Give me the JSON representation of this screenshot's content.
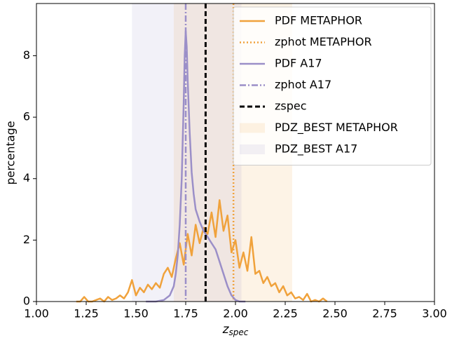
{
  "chart_data": {
    "type": "line",
    "xlabel": {
      "main": "z",
      "sub": "spec"
    },
    "ylabel": "percentage",
    "xlim": [
      1.0,
      3.0
    ],
    "ylim": [
      0,
      9.7
    ],
    "xticks": [
      {
        "value": 1.0,
        "label": "1.00"
      },
      1.25,
      {
        "value": 1.5,
        "label": "1.50"
      },
      1.75,
      {
        "value": 2.0,
        "label": "2.00"
      },
      2.25,
      {
        "value": 2.5,
        "label": "2.50"
      },
      2.75,
      {
        "value": 3.0,
        "label": "3.00"
      }
    ],
    "yticks": [
      0,
      2,
      4,
      6,
      8
    ],
    "legend": "upper right",
    "series": [
      {
        "name": "PDF METAPHOR",
        "kind": "line",
        "style": "solid",
        "color": "#f0a23c",
        "x": [
          1.2,
          1.22,
          1.24,
          1.26,
          1.28,
          1.3,
          1.32,
          1.34,
          1.36,
          1.38,
          1.4,
          1.42,
          1.44,
          1.46,
          1.48,
          1.5,
          1.52,
          1.54,
          1.56,
          1.58,
          1.6,
          1.62,
          1.64,
          1.66,
          1.68,
          1.7,
          1.72,
          1.74,
          1.76,
          1.78,
          1.8,
          1.82,
          1.84,
          1.86,
          1.88,
          1.9,
          1.92,
          1.94,
          1.96,
          1.98,
          2.0,
          2.02,
          2.04,
          2.06,
          2.08,
          2.1,
          2.12,
          2.14,
          2.16,
          2.18,
          2.2,
          2.22,
          2.24,
          2.26,
          2.28,
          2.3,
          2.32,
          2.34,
          2.36,
          2.38,
          2.4,
          2.42,
          2.44,
          2.46
        ],
        "values": [
          0,
          0,
          0.15,
          0,
          0,
          0.05,
          0.1,
          0,
          0.15,
          0.05,
          0.1,
          0.2,
          0.1,
          0.3,
          0.7,
          0.2,
          0.45,
          0.3,
          0.55,
          0.4,
          0.6,
          0.45,
          0.9,
          1.1,
          0.8,
          1.4,
          1.9,
          1.2,
          2.2,
          1.5,
          2.5,
          1.9,
          2.4,
          2.2,
          2.9,
          2.1,
          3.3,
          2.3,
          2.8,
          1.6,
          2.0,
          1.1,
          1.6,
          1.0,
          2.1,
          0.9,
          1.0,
          0.6,
          0.8,
          0.5,
          0.6,
          0.3,
          0.5,
          0.2,
          0.3,
          0.1,
          0.15,
          0.05,
          0.25,
          0,
          0.05,
          0,
          0.1,
          0
        ]
      },
      {
        "name": "zphot METAPHOR",
        "kind": "vline",
        "style": "dotted",
        "color": "#f0a23c",
        "value": 1.99
      },
      {
        "name": "PDF A17",
        "kind": "line",
        "style": "solid",
        "color": "#9b8fc8",
        "x": [
          1.55,
          1.6,
          1.64,
          1.67,
          1.69,
          1.7,
          1.71,
          1.72,
          1.73,
          1.74,
          1.745,
          1.75,
          1.755,
          1.76,
          1.77,
          1.78,
          1.79,
          1.8,
          1.82,
          1.84,
          1.86,
          1.88,
          1.9,
          1.92,
          1.94,
          1.96,
          1.98,
          2.0,
          2.02,
          2.05
        ],
        "values": [
          0,
          0,
          0.05,
          0.2,
          0.5,
          0.9,
          1.5,
          2.5,
          4,
          6.5,
          8,
          8.8,
          8.3,
          7.2,
          5.5,
          4.2,
          3.5,
          3,
          2.6,
          2.3,
          2.1,
          1.9,
          1.7,
          1.3,
          0.9,
          0.5,
          0.2,
          0.05,
          0,
          0
        ]
      },
      {
        "name": "zphot A17",
        "kind": "vline",
        "style": "dashdot",
        "color": "#9b8fc8",
        "value": 1.75
      },
      {
        "name": "zspec",
        "kind": "vline",
        "style": "dashed",
        "color": "#000000",
        "value": 1.85
      },
      {
        "name": "PDZ_BEST METAPHOR",
        "kind": "band",
        "color": "#f0a23c",
        "range": [
          1.69,
          2.285
        ]
      },
      {
        "name": "PDZ_BEST A17",
        "kind": "band",
        "color": "#9b8fc8",
        "range": [
          1.48,
          2.03
        ]
      }
    ]
  }
}
